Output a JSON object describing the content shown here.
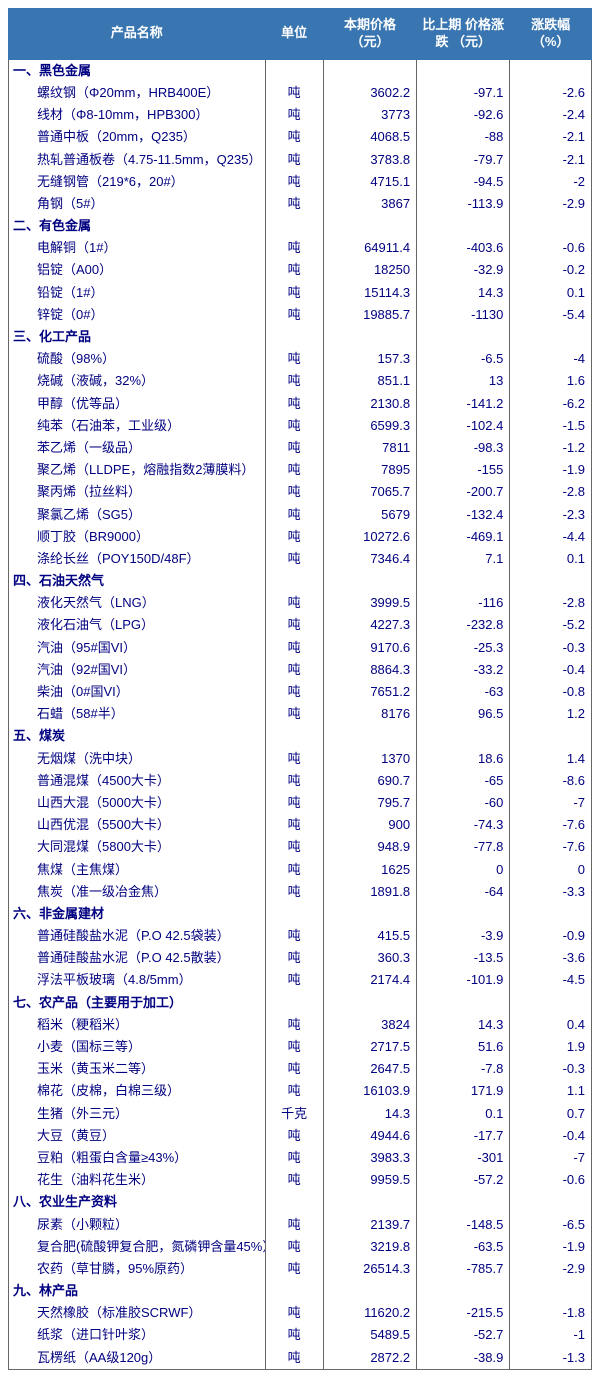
{
  "header": {
    "bg": "#3976b1",
    "fg": "#ffffff",
    "cols": [
      "产品名称",
      "单位",
      "本期价格\n（元）",
      "比上期\n价格涨跌\n（元）",
      "涨跌幅\n（%）"
    ]
  },
  "text_color": "#000080",
  "categories": [
    {
      "label": "一、黑色金属",
      "rows": [
        {
          "name": "螺纹钢（Φ20mm，HRB400E）",
          "unit": "吨",
          "price": "3602.2",
          "chg": "-97.1",
          "pct": "-2.6"
        },
        {
          "name": "线材（Φ8-10mm，HPB300）",
          "unit": "吨",
          "price": "3773",
          "chg": "-92.6",
          "pct": "-2.4"
        },
        {
          "name": "普通中板（20mm，Q235）",
          "unit": "吨",
          "price": "4068.5",
          "chg": "-88",
          "pct": "-2.1"
        },
        {
          "name": "热轧普通板卷（4.75-11.5mm，Q235）",
          "unit": "吨",
          "price": "3783.8",
          "chg": "-79.7",
          "pct": "-2.1"
        },
        {
          "name": "无缝钢管（219*6，20#）",
          "unit": "吨",
          "price": "4715.1",
          "chg": "-94.5",
          "pct": "-2"
        },
        {
          "name": "角钢（5#）",
          "unit": "吨",
          "price": "3867",
          "chg": "-113.9",
          "pct": "-2.9"
        }
      ]
    },
    {
      "label": "二、有色金属",
      "rows": [
        {
          "name": "电解铜（1#）",
          "unit": "吨",
          "price": "64911.4",
          "chg": "-403.6",
          "pct": "-0.6"
        },
        {
          "name": "铝锭（A00）",
          "unit": "吨",
          "price": "18250",
          "chg": "-32.9",
          "pct": "-0.2"
        },
        {
          "name": "铅锭（1#）",
          "unit": "吨",
          "price": "15114.3",
          "chg": "14.3",
          "pct": "0.1"
        },
        {
          "name": "锌锭（0#）",
          "unit": "吨",
          "price": "19885.7",
          "chg": "-1130",
          "pct": "-5.4"
        }
      ]
    },
    {
      "label": "三、化工产品",
      "rows": [
        {
          "name": "硫酸（98%）",
          "unit": "吨",
          "price": "157.3",
          "chg": "-6.5",
          "pct": "-4"
        },
        {
          "name": "烧碱（液碱，32%）",
          "unit": "吨",
          "price": "851.1",
          "chg": "13",
          "pct": "1.6"
        },
        {
          "name": "甲醇（优等品）",
          "unit": "吨",
          "price": "2130.8",
          "chg": "-141.2",
          "pct": "-6.2"
        },
        {
          "name": "纯苯（石油苯，工业级）",
          "unit": "吨",
          "price": "6599.3",
          "chg": "-102.4",
          "pct": "-1.5"
        },
        {
          "name": "苯乙烯（一级品）",
          "unit": "吨",
          "price": "7811",
          "chg": "-98.3",
          "pct": "-1.2"
        },
        {
          "name": "聚乙烯（LLDPE，熔融指数2薄膜料）",
          "unit": "吨",
          "price": "7895",
          "chg": "-155",
          "pct": "-1.9"
        },
        {
          "name": "聚丙烯（拉丝料）",
          "unit": "吨",
          "price": "7065.7",
          "chg": "-200.7",
          "pct": "-2.8"
        },
        {
          "name": "聚氯乙烯（SG5）",
          "unit": "吨",
          "price": "5679",
          "chg": "-132.4",
          "pct": "-2.3"
        },
        {
          "name": "顺丁胶（BR9000）",
          "unit": "吨",
          "price": "10272.6",
          "chg": "-469.1",
          "pct": "-4.4"
        },
        {
          "name": "涤纶长丝（POY150D/48F）",
          "unit": "吨",
          "price": "7346.4",
          "chg": "7.1",
          "pct": "0.1"
        }
      ]
    },
    {
      "label": "四、石油天然气",
      "rows": [
        {
          "name": "液化天然气（LNG）",
          "unit": "吨",
          "price": "3999.5",
          "chg": "-116",
          "pct": "-2.8"
        },
        {
          "name": "液化石油气（LPG）",
          "unit": "吨",
          "price": "4227.3",
          "chg": "-232.8",
          "pct": "-5.2"
        },
        {
          "name": "汽油（95#国VI）",
          "unit": "吨",
          "price": "9170.6",
          "chg": "-25.3",
          "pct": "-0.3"
        },
        {
          "name": "汽油（92#国VI）",
          "unit": "吨",
          "price": "8864.3",
          "chg": "-33.2",
          "pct": "-0.4"
        },
        {
          "name": "柴油（0#国VI）",
          "unit": "吨",
          "price": "7651.2",
          "chg": "-63",
          "pct": "-0.8"
        },
        {
          "name": "石蜡（58#半）",
          "unit": "吨",
          "price": "8176",
          "chg": "96.5",
          "pct": "1.2"
        }
      ]
    },
    {
      "label": "五、煤炭",
      "rows": [
        {
          "name": "无烟煤（洗中块）",
          "unit": "吨",
          "price": "1370",
          "chg": "18.6",
          "pct": "1.4"
        },
        {
          "name": "普通混煤（4500大卡）",
          "unit": "吨",
          "price": "690.7",
          "chg": "-65",
          "pct": "-8.6"
        },
        {
          "name": "山西大混（5000大卡）",
          "unit": "吨",
          "price": "795.7",
          "chg": "-60",
          "pct": "-7"
        },
        {
          "name": "山西优混（5500大卡）",
          "unit": "吨",
          "price": "900",
          "chg": "-74.3",
          "pct": "-7.6"
        },
        {
          "name": "大同混煤（5800大卡）",
          "unit": "吨",
          "price": "948.9",
          "chg": "-77.8",
          "pct": "-7.6"
        },
        {
          "name": "焦煤（主焦煤）",
          "unit": "吨",
          "price": "1625",
          "chg": "0",
          "pct": "0"
        },
        {
          "name": "焦炭（准一级冶金焦）",
          "unit": "吨",
          "price": "1891.8",
          "chg": "-64",
          "pct": "-3.3"
        }
      ]
    },
    {
      "label": "六、非金属建材",
      "rows": [
        {
          "name": "普通硅酸盐水泥（P.O 42.5袋装）",
          "unit": "吨",
          "price": "415.5",
          "chg": "-3.9",
          "pct": "-0.9"
        },
        {
          "name": "普通硅酸盐水泥（P.O 42.5散装）",
          "unit": "吨",
          "price": "360.3",
          "chg": "-13.5",
          "pct": "-3.6"
        },
        {
          "name": "浮法平板玻璃（4.8/5mm）",
          "unit": "吨",
          "price": "2174.4",
          "chg": "-101.9",
          "pct": "-4.5"
        }
      ]
    },
    {
      "label": "七、农产品（主要用于加工）",
      "rows": [
        {
          "name": "稻米（粳稻米）",
          "unit": "吨",
          "price": "3824",
          "chg": "14.3",
          "pct": "0.4"
        },
        {
          "name": "小麦（国标三等）",
          "unit": "吨",
          "price": "2717.5",
          "chg": "51.6",
          "pct": "1.9"
        },
        {
          "name": "玉米（黄玉米二等）",
          "unit": "吨",
          "price": "2647.5",
          "chg": "-7.8",
          "pct": "-0.3"
        },
        {
          "name": "棉花（皮棉，白棉三级）",
          "unit": "吨",
          "price": "16103.9",
          "chg": "171.9",
          "pct": "1.1"
        },
        {
          "name": "生猪（外三元）",
          "unit": "千克",
          "price": "14.3",
          "chg": "0.1",
          "pct": "0.7"
        },
        {
          "name": "大豆（黄豆）",
          "unit": "吨",
          "price": "4944.6",
          "chg": "-17.7",
          "pct": "-0.4"
        },
        {
          "name": "豆粕（粗蛋白含量≥43%）",
          "unit": "吨",
          "price": "3983.3",
          "chg": "-301",
          "pct": "-7"
        },
        {
          "name": "花生（油料花生米）",
          "unit": "吨",
          "price": "9959.5",
          "chg": "-57.2",
          "pct": "-0.6"
        }
      ]
    },
    {
      "label": "八、农业生产资料",
      "rows": [
        {
          "name": "尿素（小颗粒）",
          "unit": "吨",
          "price": "2139.7",
          "chg": "-148.5",
          "pct": "-6.5"
        },
        {
          "name": "复合肥(硫酸钾复合肥，氮磷钾含量45%）",
          "unit": "吨",
          "price": "3219.8",
          "chg": "-63.5",
          "pct": "-1.9"
        },
        {
          "name": "农药（草甘膦，95%原药）",
          "unit": "吨",
          "price": "26514.3",
          "chg": "-785.7",
          "pct": "-2.9"
        }
      ]
    },
    {
      "label": "九、林产品",
      "rows": [
        {
          "name": "天然橡胶（标准胶SCRWF）",
          "unit": "吨",
          "price": "11620.2",
          "chg": "-215.5",
          "pct": "-1.8"
        },
        {
          "name": "纸浆（进口针叶浆）",
          "unit": "吨",
          "price": "5489.5",
          "chg": "-52.7",
          "pct": "-1"
        },
        {
          "name": "瓦楞纸（AA级120g）",
          "unit": "吨",
          "price": "2872.2",
          "chg": "-38.9",
          "pct": "-1.3"
        }
      ]
    }
  ]
}
